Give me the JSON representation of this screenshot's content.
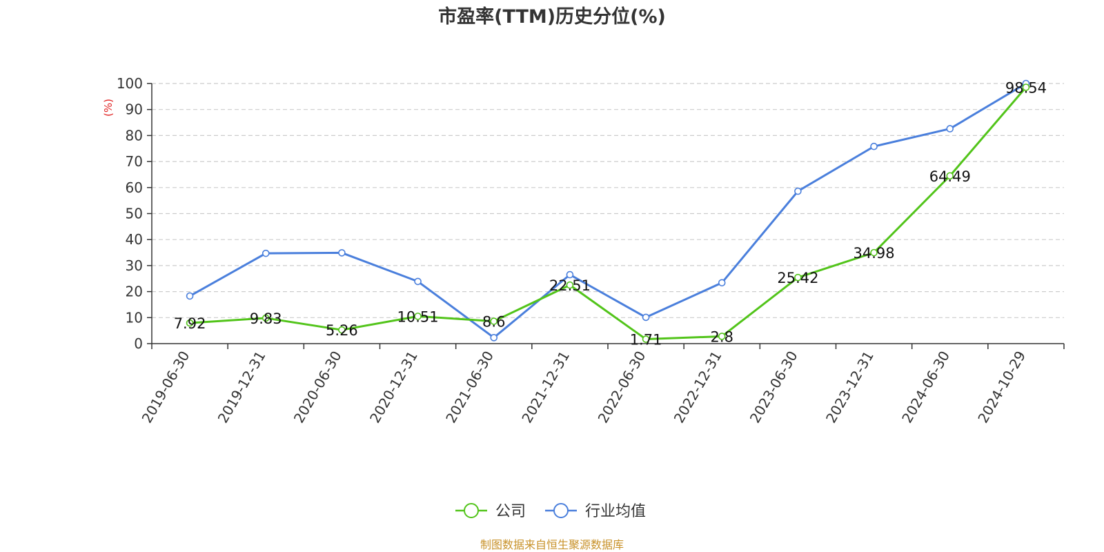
{
  "chart_data": {
    "type": "line",
    "title": "市盈率(TTM)历史分位(%)",
    "ylabel": "(%)",
    "xlabel": "",
    "ylim": [
      0,
      100
    ],
    "yticks": [
      0,
      10,
      20,
      30,
      40,
      50,
      60,
      70,
      80,
      90,
      100
    ],
    "grid": "horizontal dashed",
    "legend_position": "bottom-center",
    "categories": [
      "2019-06-30",
      "2019-12-31",
      "2020-06-30",
      "2020-12-31",
      "2021-06-30",
      "2021-12-31",
      "2022-06-30",
      "2022-12-31",
      "2023-06-30",
      "2023-12-31",
      "2024-06-30",
      "2024-10-29"
    ],
    "series": [
      {
        "name": "公司",
        "color": "#52c41a",
        "values": [
          7.92,
          9.83,
          5.26,
          10.51,
          8.6,
          22.51,
          1.71,
          2.8,
          25.42,
          34.98,
          64.49,
          98.54
        ],
        "labels": [
          "7.92",
          "9.83",
          "5.26",
          "10.51",
          "8.6",
          "22.51",
          "1.71",
          "2.8",
          "25.42",
          "34.98",
          "64.49",
          "98.54"
        ]
      },
      {
        "name": "行业均值",
        "color": "#4a7fdc",
        "values": [
          18.3,
          34.7,
          34.9,
          23.9,
          2.3,
          26.5,
          10.1,
          23.4,
          58.6,
          75.8,
          82.6,
          100
        ]
      }
    ],
    "source": "制图数据来自恒生聚源数据库"
  },
  "colors": {
    "axis": "#333333",
    "grid": "#cccccc",
    "ylabel": "#e02020",
    "source": "#c8922a"
  }
}
